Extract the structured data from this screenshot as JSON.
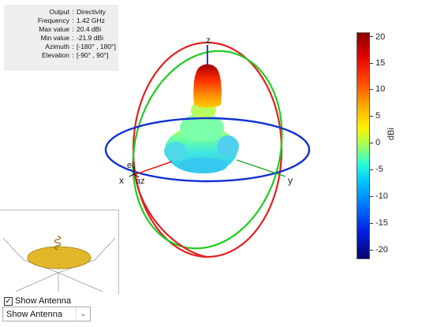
{
  "info": {
    "rows": [
      {
        "label": "Output",
        "value": "Directivity"
      },
      {
        "label": "Frequency",
        "value": "1.42 GHz"
      },
      {
        "label": "Max value",
        "value": "20.4 dBi"
      },
      {
        "label": "Min value",
        "value": "-21.9 dBi"
      },
      {
        "label": "Azimuth",
        "value": "[-180° , 180°]"
      },
      {
        "label": "Elevation",
        "value": "[-90° , 90°]"
      }
    ]
  },
  "axes": {
    "x": "x",
    "y": "y",
    "z": "z",
    "el": "el",
    "az": "az"
  },
  "colorbar": {
    "ticks": [
      "20",
      "15",
      "10",
      "5",
      "0",
      "-5",
      "-10",
      "-15",
      "-20"
    ],
    "unit": "dBi",
    "colors": {
      "top": "#8a0000",
      "bottom": "#0a0070"
    }
  },
  "controls": {
    "checkbox_label": "Show Antenna",
    "checkbox_checked": "✓",
    "select_value": "Show Antenna"
  }
}
